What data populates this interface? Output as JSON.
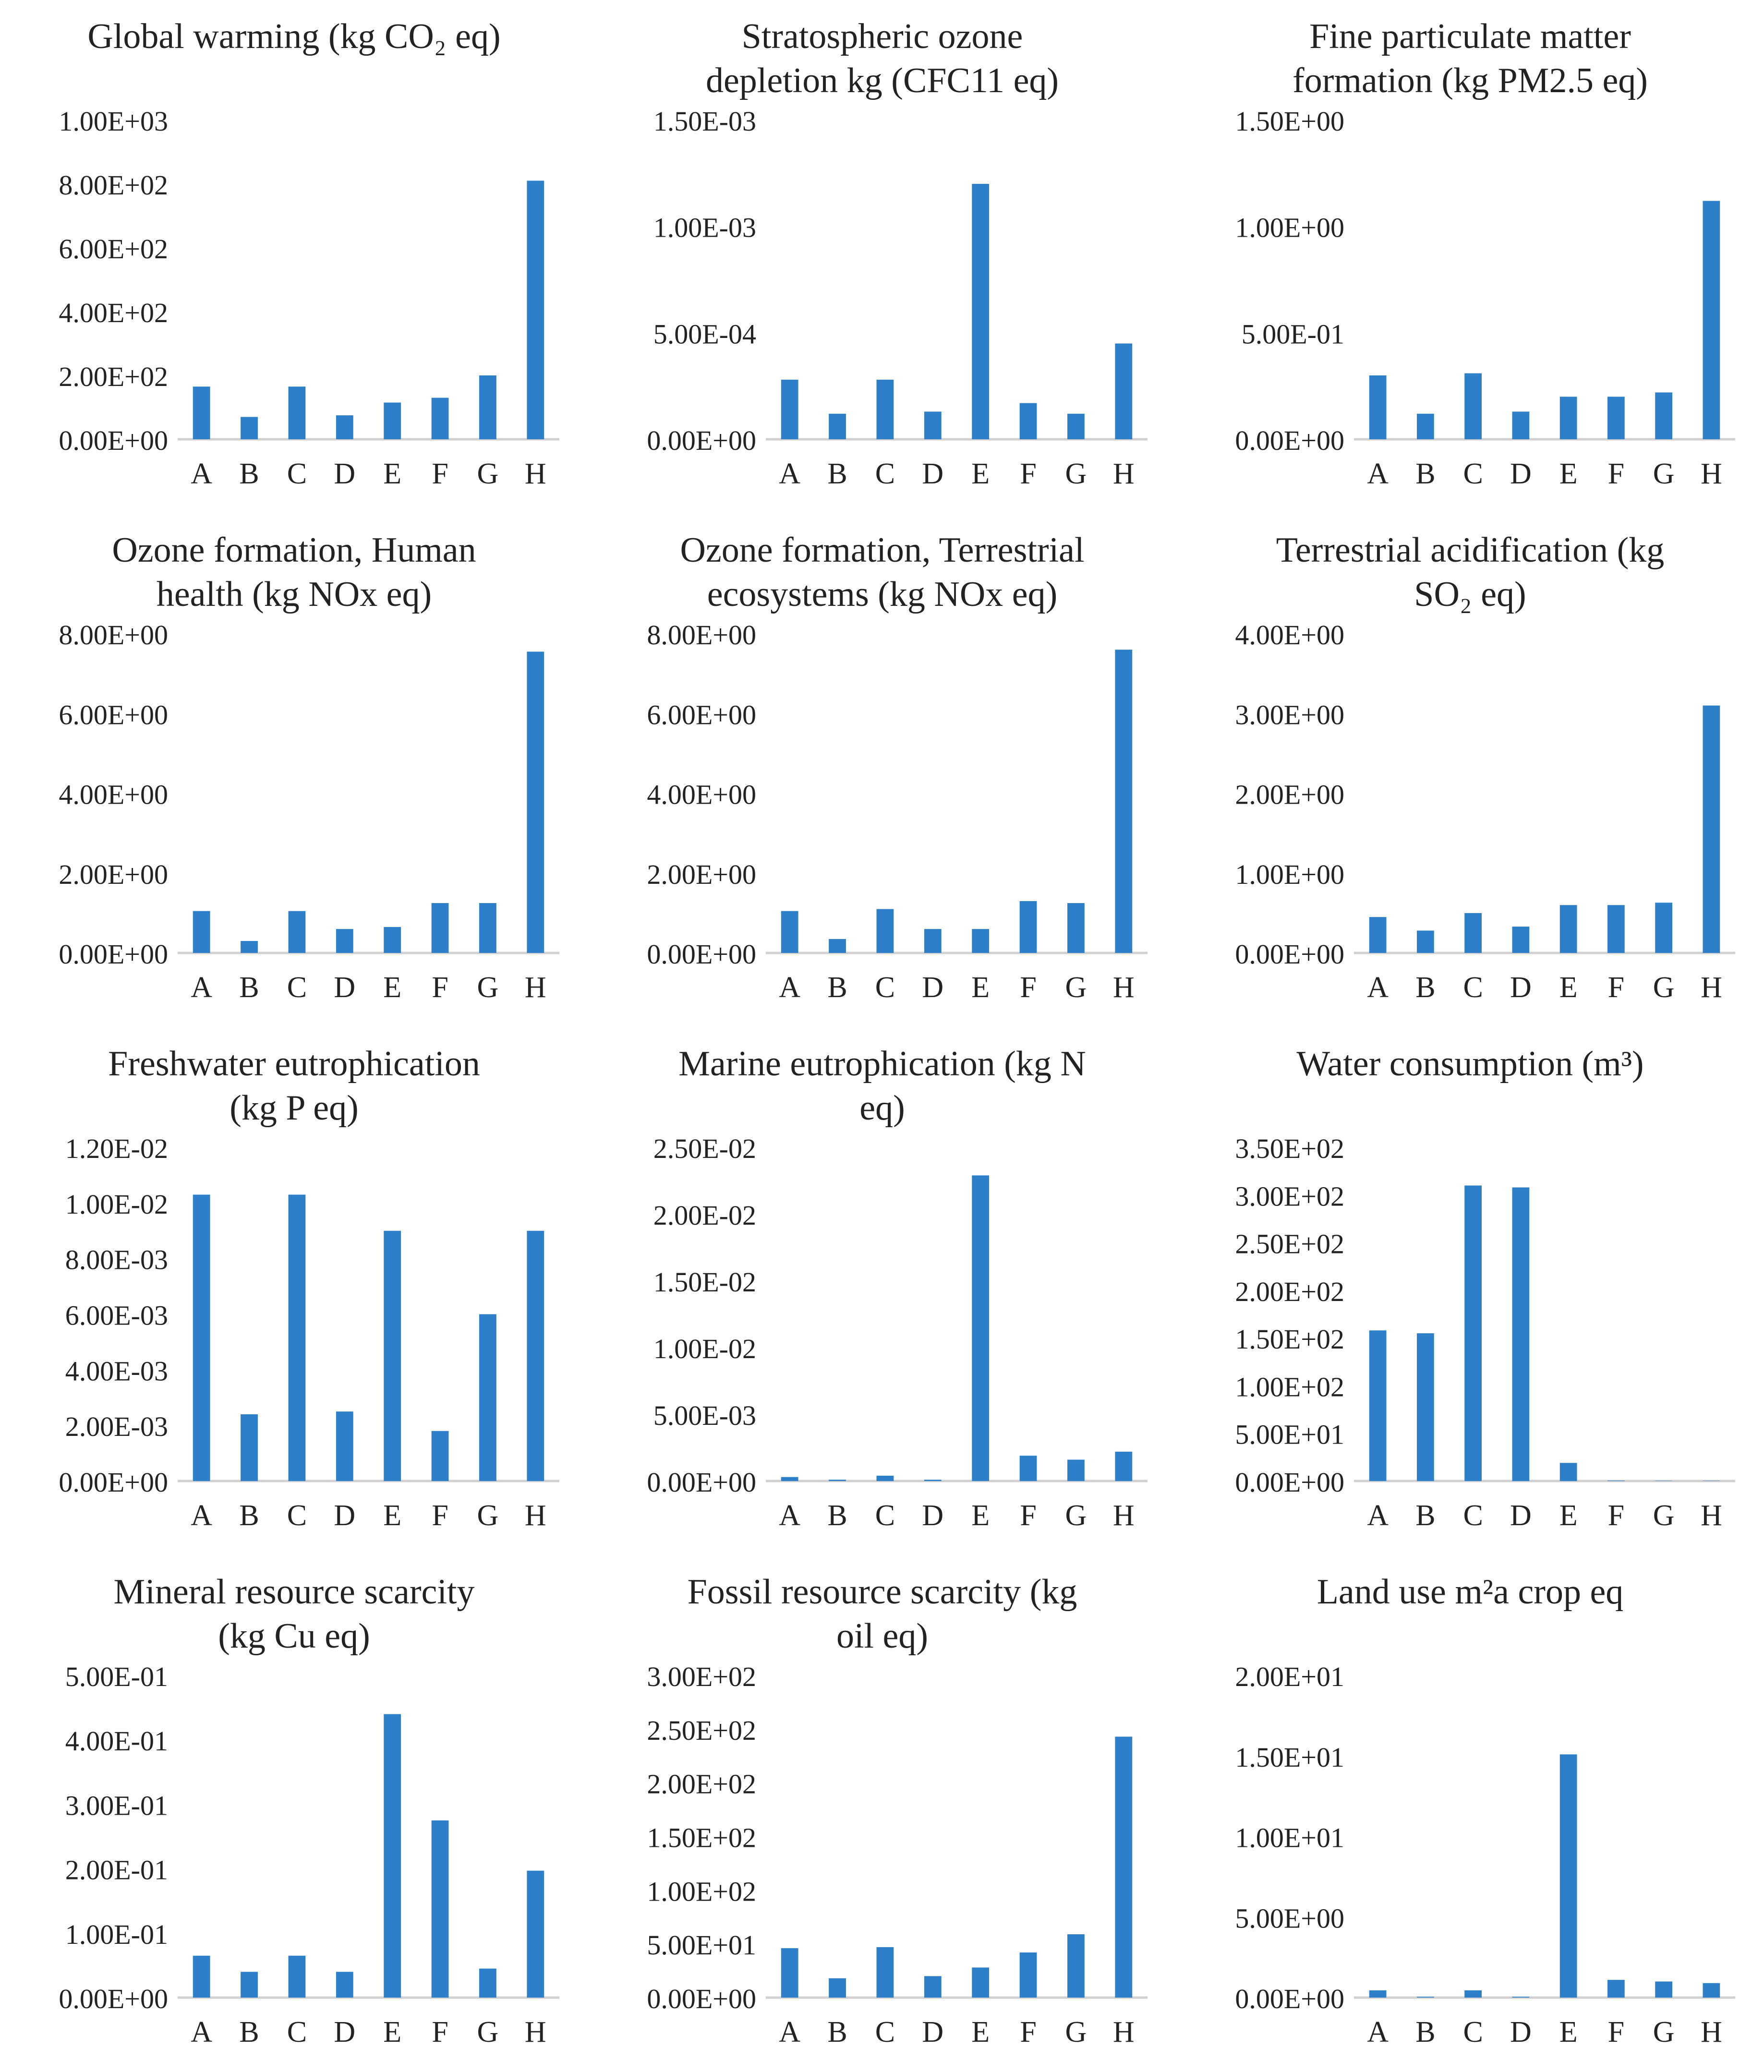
{
  "colors": {
    "bar": "#2e7fca",
    "axis": "#d0d0d0",
    "text": "#222222"
  },
  "chart_data": [
    {
      "type": "bar",
      "title": "Global warming (kg CO₂ eq)",
      "categories": [
        "A",
        "B",
        "C",
        "D",
        "E",
        "F",
        "G",
        "H"
      ],
      "values": [
        165,
        70,
        165,
        75,
        115,
        130,
        200,
        810
      ],
      "ylim": [
        0,
        1000
      ],
      "yticks": [
        "0.00E+00",
        "2.00E+02",
        "4.00E+02",
        "6.00E+02",
        "8.00E+02",
        "1.00E+03"
      ]
    },
    {
      "type": "bar",
      "title": "Stratospheric ozone depletion kg (CFC11 eq)",
      "categories": [
        "A",
        "B",
        "C",
        "D",
        "E",
        "F",
        "G",
        "H"
      ],
      "values": [
        0.00028,
        0.00012,
        0.00028,
        0.00013,
        0.0012,
        0.00017,
        0.00012,
        0.00045
      ],
      "ylim": [
        0,
        0.0015
      ],
      "yticks": [
        "0.00E+00",
        "5.00E-04",
        "1.00E-03",
        "1.50E-03"
      ]
    },
    {
      "type": "bar",
      "title": "Fine particulate matter formation (kg PM2.5 eq)",
      "categories": [
        "A",
        "B",
        "C",
        "D",
        "E",
        "F",
        "G",
        "H"
      ],
      "values": [
        0.3,
        0.12,
        0.31,
        0.13,
        0.2,
        0.2,
        0.22,
        1.12
      ],
      "ylim": [
        0,
        1.5
      ],
      "yticks": [
        "0.00E+00",
        "5.00E-01",
        "1.00E+00",
        "1.50E+00"
      ]
    },
    {
      "type": "bar",
      "title": "Ozone formation, Human health (kg NOx eq)",
      "categories": [
        "A",
        "B",
        "C",
        "D",
        "E",
        "F",
        "G",
        "H"
      ],
      "values": [
        1.05,
        0.3,
        1.05,
        0.6,
        0.65,
        1.25,
        1.25,
        7.55
      ],
      "ylim": [
        0,
        8
      ],
      "yticks": [
        "0.00E+00",
        "2.00E+00",
        "4.00E+00",
        "6.00E+00",
        "8.00E+00"
      ]
    },
    {
      "type": "bar",
      "title": "Ozone formation, Terrestrial ecosystems (kg NOx eq)",
      "categories": [
        "A",
        "B",
        "C",
        "D",
        "E",
        "F",
        "G",
        "H"
      ],
      "values": [
        1.05,
        0.35,
        1.1,
        0.6,
        0.6,
        1.3,
        1.25,
        7.6
      ],
      "ylim": [
        0,
        8
      ],
      "yticks": [
        "0.00E+00",
        "2.00E+00",
        "4.00E+00",
        "6.00E+00",
        "8.00E+00"
      ]
    },
    {
      "type": "bar",
      "title": "Terrestrial acidification (kg SO₂ eq)",
      "categories": [
        "A",
        "B",
        "C",
        "D",
        "E",
        "F",
        "G",
        "H"
      ],
      "values": [
        0.45,
        0.28,
        0.5,
        0.33,
        0.6,
        0.6,
        0.63,
        3.1
      ],
      "ylim": [
        0,
        4
      ],
      "yticks": [
        "0.00E+00",
        "1.00E+00",
        "2.00E+00",
        "3.00E+00",
        "4.00E+00"
      ]
    },
    {
      "type": "bar",
      "title": "Freshwater eutrophication (kg P eq)",
      "categories": [
        "A",
        "B",
        "C",
        "D",
        "E",
        "F",
        "G",
        "H"
      ],
      "values": [
        0.0103,
        0.0024,
        0.0103,
        0.0025,
        0.009,
        0.0018,
        0.006,
        0.009
      ],
      "ylim": [
        0,
        0.012
      ],
      "yticks": [
        "0.00E+00",
        "2.00E-03",
        "4.00E-03",
        "6.00E-03",
        "8.00E-03",
        "1.00E-02",
        "1.20E-02"
      ]
    },
    {
      "type": "bar",
      "title": "Marine eutrophication (kg N eq)",
      "categories": [
        "A",
        "B",
        "C",
        "D",
        "E",
        "F",
        "G",
        "H"
      ],
      "values": [
        0.0003,
        0.0001,
        0.0004,
        0.0001,
        0.0229,
        0.0019,
        0.0016,
        0.0022
      ],
      "ylim": [
        0,
        0.025
      ],
      "yticks": [
        "0.00E+00",
        "5.00E-03",
        "1.00E-02",
        "1.50E-02",
        "2.00E-02",
        "2.50E-02"
      ]
    },
    {
      "type": "bar",
      "title": "Water consumption (m³)",
      "categories": [
        "A",
        "B",
        "C",
        "D",
        "E",
        "F",
        "G",
        "H"
      ],
      "values": [
        158,
        155,
        310,
        308,
        19,
        0.5,
        0.3,
        0.3
      ],
      "ylim": [
        0,
        350
      ],
      "yticks": [
        "0.00E+00",
        "5.00E+01",
        "1.00E+02",
        "1.50E+02",
        "2.00E+02",
        "2.50E+02",
        "3.00E+02",
        "3.50E+02"
      ]
    },
    {
      "type": "bar",
      "title": "Mineral resource scarcity (kg Cu eq)",
      "categories": [
        "A",
        "B",
        "C",
        "D",
        "E",
        "F",
        "G",
        "H"
      ],
      "values": [
        0.065,
        0.04,
        0.065,
        0.04,
        0.44,
        0.275,
        0.045,
        0.197
      ],
      "ylim": [
        0,
        0.5
      ],
      "yticks": [
        "0.00E+00",
        "1.00E-01",
        "2.00E-01",
        "3.00E-01",
        "4.00E-01",
        "5.00E-01"
      ]
    },
    {
      "type": "bar",
      "title": "Fossil resource scarcity (kg oil eq)",
      "categories": [
        "A",
        "B",
        "C",
        "D",
        "E",
        "F",
        "G",
        "H"
      ],
      "values": [
        46,
        18,
        47,
        20,
        28,
        42,
        59,
        243
      ],
      "ylim": [
        0,
        300
      ],
      "yticks": [
        "0.00E+00",
        "5.00E+01",
        "1.00E+02",
        "1.50E+02",
        "2.00E+02",
        "2.50E+02",
        "3.00E+02"
      ]
    },
    {
      "type": "bar",
      "title": "Land use m²a crop eq",
      "categories": [
        "A",
        "B",
        "C",
        "D",
        "E",
        "F",
        "G",
        "H"
      ],
      "values": [
        0.45,
        0.05,
        0.45,
        0.05,
        15.1,
        1.1,
        1.0,
        0.9
      ],
      "ylim": [
        0,
        20
      ],
      "yticks": [
        "0.00E+00",
        "5.00E+00",
        "1.00E+01",
        "1.50E+01",
        "2.00E+01"
      ]
    }
  ]
}
